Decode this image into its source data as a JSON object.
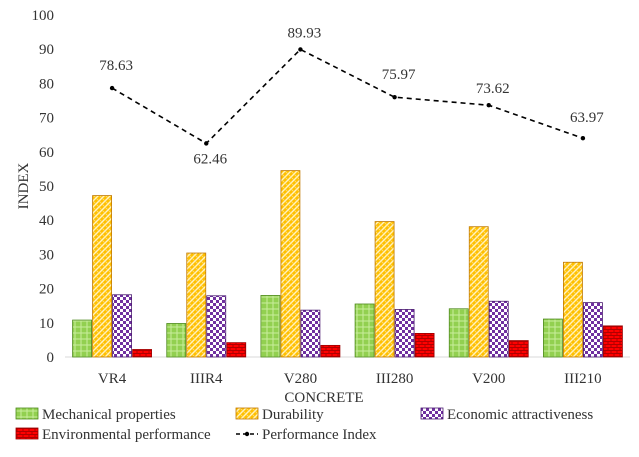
{
  "chart_data": {
    "type": "bar",
    "title": "",
    "xlabel": "CONCRETE",
    "ylabel": "INDEX",
    "ylim": [
      0,
      100
    ],
    "yticks": [
      0,
      10,
      20,
      30,
      40,
      50,
      60,
      70,
      80,
      90,
      100
    ],
    "grid": false,
    "legend_position": "bottom",
    "categories": [
      "VR4",
      "IIIR4",
      "V280",
      "III280",
      "V200",
      "III210"
    ],
    "series": [
      {
        "name": "Mechanical properties",
        "kind": "bar",
        "color": "#92d050",
        "pattern": "crosshatch",
        "values": [
          10.8,
          9.8,
          18.0,
          15.5,
          14.1,
          11.1
        ]
      },
      {
        "name": "Durability",
        "kind": "bar",
        "color": "#ffc000",
        "pattern": "diagonal-weave",
        "values": [
          47.2,
          30.4,
          54.5,
          39.6,
          38.1,
          27.7
        ]
      },
      {
        "name": "Economic attractiveness",
        "kind": "bar",
        "color": "#7030a0",
        "pattern": "checker",
        "values": [
          18.2,
          17.9,
          13.7,
          13.9,
          16.3,
          15.9
        ]
      },
      {
        "name": "Environmental performance",
        "kind": "bar",
        "color": "#ff0000",
        "pattern": "brick",
        "values": [
          2.2,
          4.2,
          3.4,
          6.9,
          4.8,
          9.1
        ]
      },
      {
        "name": "Performance Index",
        "kind": "line",
        "color": "#000000",
        "style": "dashed-with-dots",
        "values": [
          78.63,
          62.46,
          89.93,
          75.97,
          73.62,
          63.97
        ],
        "labels": [
          "78.63",
          "62.46",
          "89.93",
          "75.97",
          "73.62",
          "63.97"
        ]
      }
    ]
  }
}
